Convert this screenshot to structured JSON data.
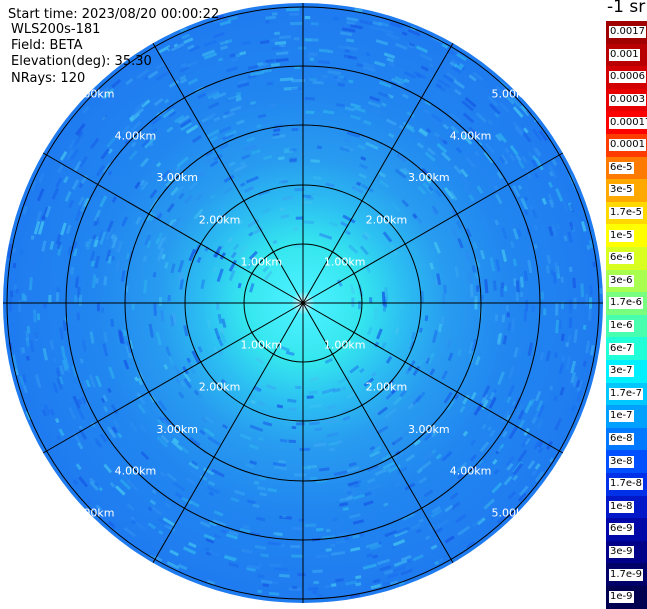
{
  "header": {
    "start_time": "Start time: 2023/08/20 00:00:22",
    "instrument": "WLS200s-181",
    "field": "Field: BETA",
    "elevation": "Elevation(deg): 35.30",
    "nrays": "NRays: 120"
  },
  "unit_label": "-1 sr",
  "range_ring_labels": [
    "1.00km",
    "2.00km",
    "3.00km",
    "4.00km",
    "5.00km"
  ],
  "colorbar": [
    {
      "label": "0.0017",
      "color": "#a10000"
    },
    {
      "label": "0.001",
      "color": "#b80000"
    },
    {
      "label": "0.0006",
      "color": "#d20000"
    },
    {
      "label": "0.0003",
      "color": "#e80000"
    },
    {
      "label": "0.00017",
      "color": "#ff0000"
    },
    {
      "label": "0.0001",
      "color": "#ff3c00"
    },
    {
      "label": "6e-5",
      "color": "#ff7a00"
    },
    {
      "label": "3e-5",
      "color": "#ffa800"
    },
    {
      "label": "1.7e-5",
      "color": "#ffd800"
    },
    {
      "label": "1e-5",
      "color": "#ffff00"
    },
    {
      "label": "6e-6",
      "color": "#d8ff20"
    },
    {
      "label": "3e-6",
      "color": "#a8ff50"
    },
    {
      "label": "1.7e-6",
      "color": "#78ff80"
    },
    {
      "label": "1e-6",
      "color": "#48ffb0"
    },
    {
      "label": "6e-7",
      "color": "#20ffd8"
    },
    {
      "label": "3e-7",
      "color": "#00f0ff"
    },
    {
      "label": "1.7e-7",
      "color": "#00c8ff"
    },
    {
      "label": "1e-7",
      "color": "#00a0ff"
    },
    {
      "label": "6e-8",
      "color": "#0078ff"
    },
    {
      "label": "3e-8",
      "color": "#0050ff"
    },
    {
      "label": "1.7e-8",
      "color": "#0030e8"
    },
    {
      "label": "1e-8",
      "color": "#0018c8"
    },
    {
      "label": "6e-9",
      "color": "#0008a8"
    },
    {
      "label": "3e-9",
      "color": "#000088"
    },
    {
      "label": "1.7e-9",
      "color": "#000068"
    },
    {
      "label": "1e-9",
      "color": "#000050"
    }
  ],
  "colors": {
    "far_field": "#1f7bf0",
    "mid_field": "#2cb6f2",
    "near_field": "#35e6ee",
    "grid_line": "#000000",
    "range_label": "#ffffff"
  }
}
